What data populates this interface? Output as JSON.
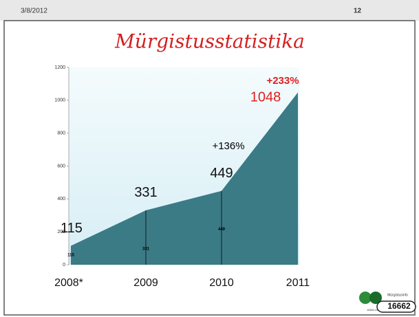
{
  "slide": {
    "date": "3/8/2012",
    "page": "12",
    "logo": {
      "name": "Mürgistusinfo",
      "phone": "16662",
      "site": "16662.ee"
    }
  },
  "chart_data": {
    "type": "area",
    "title": "Mürgistusstatistika",
    "categories": [
      "2008*",
      "2009",
      "2010",
      "2011"
    ],
    "values": [
      115,
      331,
      449,
      1048
    ],
    "color": "#3a7b86",
    "ylim": [
      0,
      1200
    ],
    "yticks": [
      0,
      200,
      400,
      600,
      800,
      1000,
      1200
    ],
    "annotations": [
      {
        "text": "+136%",
        "color": "#000000"
      },
      {
        "text": "+233%",
        "color": "#e02020"
      }
    ],
    "highlight_color": "#e02020"
  }
}
